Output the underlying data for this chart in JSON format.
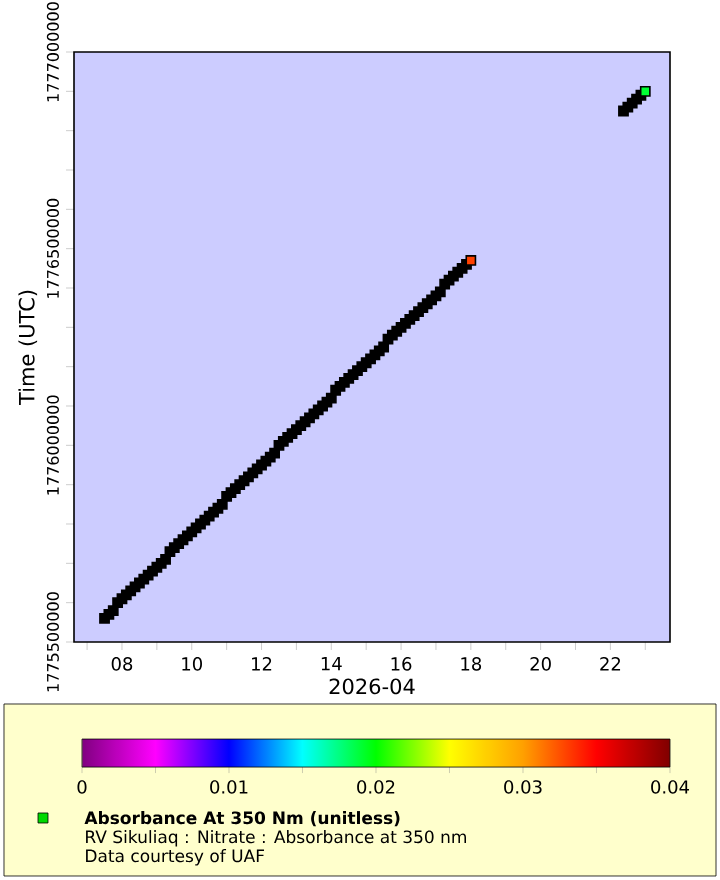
{
  "chart_data": {
    "type": "scatter",
    "xlabel": "2026-04",
    "ylabel": "Time (UTC)",
    "clabel": "Absorbance At 350 Nm (unitless)",
    "annotations": [
      "RV Sikuliaq : Nitrate : Absorbance at 350 nm",
      "Data courtesy of UAF"
    ],
    "xlim": [
      "2026-04-06T15:00",
      "2026-04-23T17:00"
    ],
    "xticks": [
      {
        "value": "2026-04-07",
        "label": null
      },
      {
        "value": "2026-04-08",
        "label": "08"
      },
      {
        "value": "2026-04-09",
        "label": null
      },
      {
        "value": "2026-04-10",
        "label": "10"
      },
      {
        "value": "2026-04-11",
        "label": null
      },
      {
        "value": "2026-04-12",
        "label": "12"
      },
      {
        "value": "2026-04-13",
        "label": null
      },
      {
        "value": "2026-04-14",
        "label": "14"
      },
      {
        "value": "2026-04-15",
        "label": null
      },
      {
        "value": "2026-04-16",
        "label": "16"
      },
      {
        "value": "2026-04-17",
        "label": null
      },
      {
        "value": "2026-04-18",
        "label": "18"
      },
      {
        "value": "2026-04-19",
        "label": null
      },
      {
        "value": "2026-04-20",
        "label": "20"
      },
      {
        "value": "2026-04-21",
        "label": null
      },
      {
        "value": "2026-04-22",
        "label": "22"
      },
      {
        "value": "2026-04-23",
        "label": null
      }
    ],
    "ylim": [
      1775500000,
      1777000000
    ],
    "yticks": [
      1775500000,
      {
        "value": 1775600000,
        "label": null
      },
      {
        "value": 1775700000,
        "label": null
      },
      {
        "value": 1775800000,
        "label": null
      },
      {
        "value": 1775900000,
        "label": null
      },
      1776000000,
      {
        "value": 1776100000,
        "label": null
      },
      {
        "value": 1776200000,
        "label": null
      },
      {
        "value": 1776300000,
        "label": null
      },
      {
        "value": 1776400000,
        "label": null
      },
      1776500000,
      {
        "value": 1776600000,
        "label": null
      },
      {
        "value": 1776700000,
        "label": null
      },
      {
        "value": 1776800000,
        "label": null
      },
      {
        "value": 1776900000,
        "label": null
      },
      1777000000
    ],
    "clim": [
      0,
      0.04
    ],
    "cticks": [
      0,
      0.01,
      0.02,
      0.03,
      0.04
    ],
    "marker": "square",
    "series": [
      {
        "color": "#000000",
        "x": [
          "2026-04-07T12:00",
          "2026-04-07T15:00",
          "2026-04-07T18:00",
          "2026-04-07T21:00",
          "2026-04-08T00:00",
          "2026-04-08T03:00",
          "2026-04-08T06:00",
          "2026-04-08T09:00",
          "2026-04-08T12:00",
          "2026-04-08T15:00",
          "2026-04-08T18:00",
          "2026-04-08T21:00",
          "2026-04-09T00:00",
          "2026-04-09T03:00",
          "2026-04-09T06:00",
          "2026-04-09T09:00",
          "2026-04-09T12:00",
          "2026-04-09T15:00",
          "2026-04-09T18:00",
          "2026-04-09T21:00",
          "2026-04-10T00:00",
          "2026-04-10T03:00",
          "2026-04-10T06:00",
          "2026-04-10T09:00",
          "2026-04-10T12:00",
          "2026-04-10T15:00",
          "2026-04-10T18:00",
          "2026-04-10T21:00",
          "2026-04-11T00:00",
          "2026-04-11T03:00",
          "2026-04-11T06:00",
          "2026-04-11T09:00",
          "2026-04-11T12:00",
          "2026-04-11T15:00",
          "2026-04-11T18:00",
          "2026-04-11T21:00",
          "2026-04-12T00:00",
          "2026-04-12T03:00",
          "2026-04-12T06:00",
          "2026-04-12T09:00",
          "2026-04-12T12:00",
          "2026-04-12T15:00",
          "2026-04-12T18:00",
          "2026-04-12T21:00",
          "2026-04-13T00:00",
          "2026-04-13T03:00",
          "2026-04-13T06:00",
          "2026-04-13T09:00",
          "2026-04-13T12:00",
          "2026-04-13T15:00",
          "2026-04-13T18:00",
          "2026-04-13T21:00",
          "2026-04-14T00:00",
          "2026-04-14T03:00",
          "2026-04-14T06:00",
          "2026-04-14T09:00",
          "2026-04-14T12:00",
          "2026-04-14T15:00",
          "2026-04-14T18:00",
          "2026-04-14T21:00",
          "2026-04-15T00:00",
          "2026-04-15T03:00",
          "2026-04-15T06:00",
          "2026-04-15T09:00",
          "2026-04-15T12:00",
          "2026-04-15T15:00",
          "2026-04-15T18:00",
          "2026-04-15T21:00",
          "2026-04-16T00:00",
          "2026-04-16T03:00",
          "2026-04-16T06:00",
          "2026-04-16T09:00",
          "2026-04-16T12:00",
          "2026-04-16T15:00",
          "2026-04-16T18:00",
          "2026-04-16T21:00",
          "2026-04-17T00:00",
          "2026-04-17T03:00",
          "2026-04-17T06:00",
          "2026-04-17T09:00",
          "2026-04-17T12:00",
          "2026-04-17T15:00",
          "2026-04-17T18:00",
          "2026-04-17T21:00",
          "2026-04-18T00:00",
          "2026-04-22T09:00",
          "2026-04-22T12:00",
          "2026-04-22T15:00",
          "2026-04-22T18:00",
          "2026-04-22T21:00",
          "2026-04-23T00:00"
        ],
        "values": [
          1775560000,
          1775570000,
          1775580000,
          1775600000,
          1775610000,
          1775620000,
          1775630000,
          1775640000,
          1775650000,
          1775660000,
          1775670000,
          1775680000,
          1775690000,
          1775700000,
          1775710000,
          1775730000,
          1775740000,
          1775750000,
          1775760000,
          1775770000,
          1775780000,
          1775790000,
          1775800000,
          1775810000,
          1775820000,
          1775830000,
          1775840000,
          1775850000,
          1775870000,
          1775880000,
          1775890000,
          1775900000,
          1775910000,
          1775920000,
          1775930000,
          1775940000,
          1775950000,
          1775960000,
          1775970000,
          1775980000,
          1776000000,
          1776010000,
          1776020000,
          1776030000,
          1776040000,
          1776050000,
          1776060000,
          1776070000,
          1776080000,
          1776090000,
          1776100000,
          1776110000,
          1776120000,
          1776140000,
          1776150000,
          1776160000,
          1776170000,
          1776180000,
          1776190000,
          1776200000,
          1776210000,
          1776220000,
          1776230000,
          1776240000,
          1776250000,
          1776270000,
          1776280000,
          1776290000,
          1776300000,
          1776310000,
          1776320000,
          1776330000,
          1776340000,
          1776350000,
          1776360000,
          1776370000,
          1776380000,
          1776390000,
          1776410000,
          1776420000,
          1776430000,
          1776440000,
          1776450000,
          1776460000,
          1776470000,
          1776850000,
          1776860000,
          1776870000,
          1776880000,
          1776890000,
          1776900000
        ],
        "cvalues": [
          null,
          null,
          null,
          null,
          null,
          null,
          null,
          null,
          null,
          null,
          null,
          null,
          null,
          null,
          null,
          null,
          null,
          null,
          null,
          null,
          null,
          null,
          null,
          null,
          null,
          null,
          null,
          null,
          null,
          null,
          null,
          null,
          null,
          null,
          null,
          null,
          null,
          null,
          null,
          null,
          null,
          null,
          null,
          null,
          null,
          null,
          null,
          null,
          null,
          null,
          null,
          null,
          null,
          null,
          null,
          null,
          null,
          null,
          null,
          null,
          null,
          null,
          null,
          null,
          null,
          null,
          null,
          null,
          null,
          null,
          null,
          null,
          null,
          null,
          null,
          null,
          null,
          null,
          null,
          null,
          null,
          null,
          null,
          null,
          0.033,
          null,
          null,
          null,
          null,
          null,
          0.019
        ]
      }
    ]
  }
}
